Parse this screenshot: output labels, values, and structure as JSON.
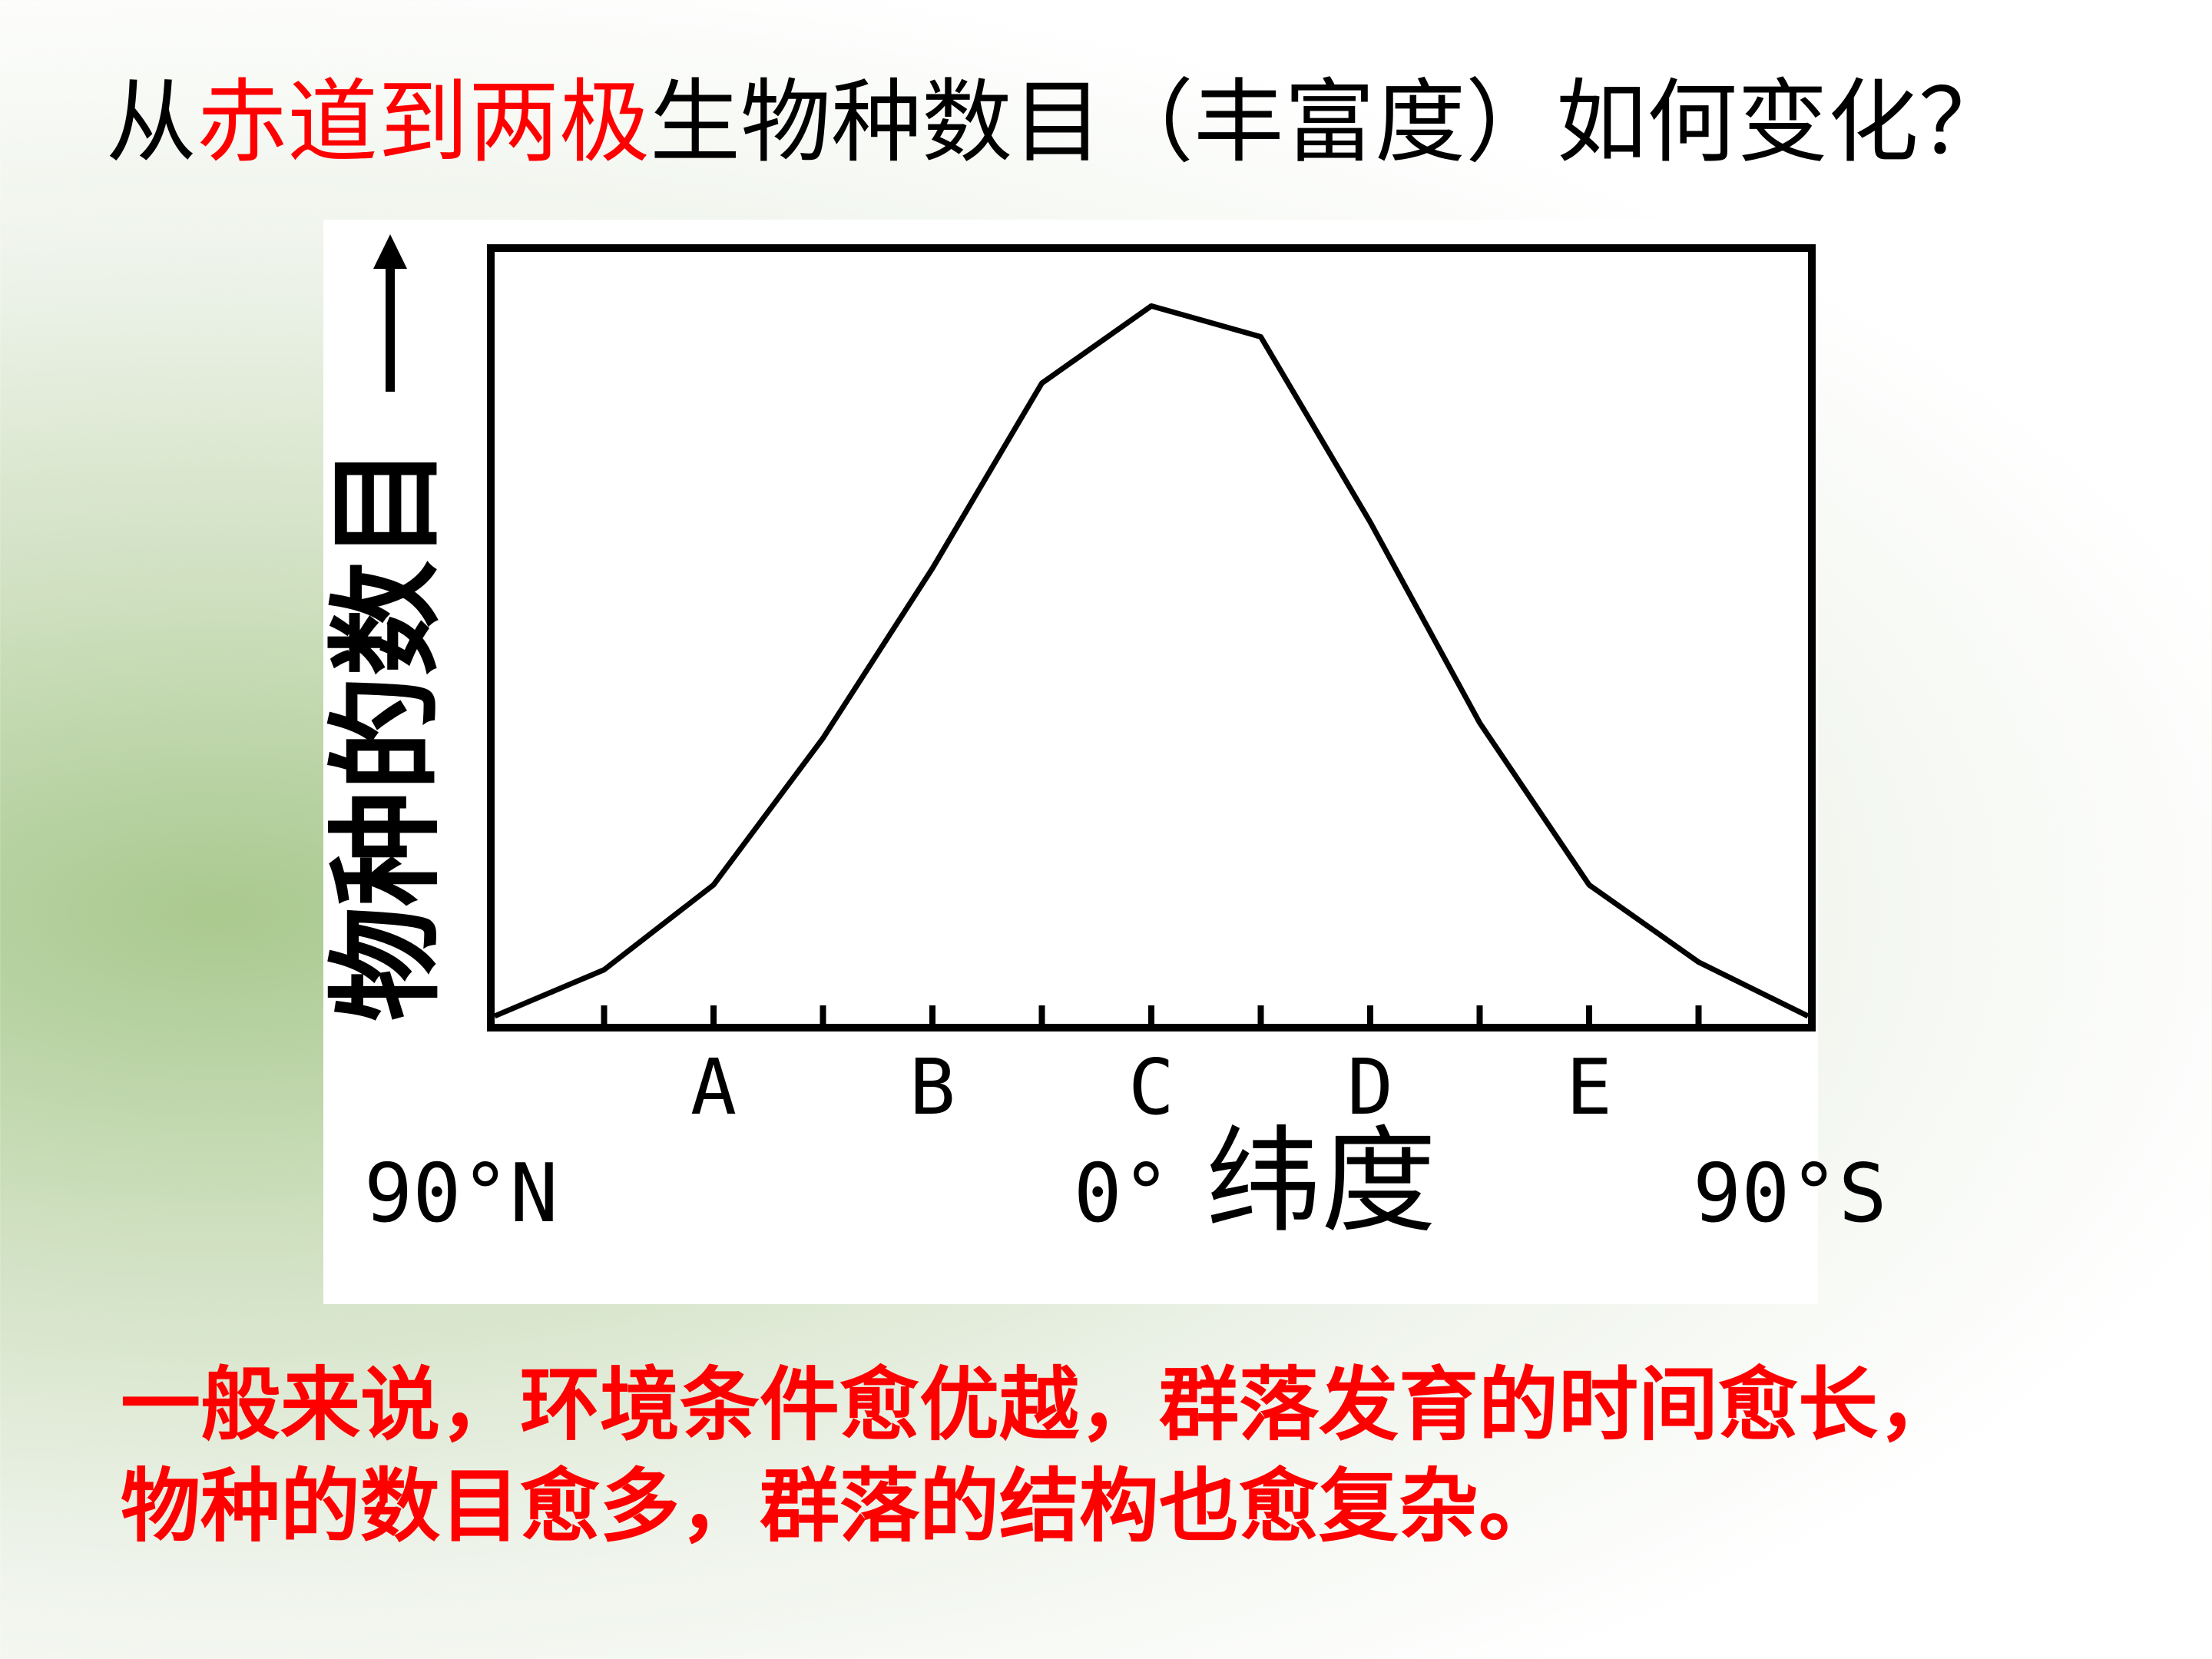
{
  "chart_data": {
    "type": "line",
    "title_parts": [
      {
        "text": "从",
        "color": "#000000"
      },
      {
        "text": "赤道到两极",
        "color": "#ff0000"
      },
      {
        "text": "生物种数目（丰富度）如何变化？",
        "color": "#000000"
      }
    ],
    "y_label": "物种的数目",
    "x_label": "纬度",
    "x": [
      90,
      75,
      60,
      45,
      30,
      15,
      0,
      -15,
      -30,
      -45,
      -60,
      -75,
      -90
    ],
    "series": [
      {
        "color": "#000000",
        "values": [
          1,
          7,
          18,
          37,
          59,
          83,
          93,
          89,
          65,
          39,
          18,
          8,
          1
        ]
      }
    ],
    "xlim": [
      90,
      -90
    ],
    "ylim": [
      0,
      100
    ],
    "xticks": [
      {
        "value": 60,
        "label": "A"
      },
      {
        "value": 30,
        "label": "B"
      },
      {
        "value": 0,
        "label": "C"
      },
      {
        "value": -30,
        "label": "D"
      },
      {
        "value": -60,
        "label": "E"
      }
    ],
    "minor_xticks": [
      75,
      45,
      15,
      -15,
      -45,
      -75
    ],
    "latitude_labels": [
      {
        "value": 90,
        "label": "90°N"
      },
      {
        "value": 0,
        "label": "0°"
      },
      {
        "value": -90,
        "label": "90°S"
      }
    ],
    "notes": [
      "一般来说，环境条件愈优越，群落发育的时间愈长，",
      "物种的数目愈多，群落的结构也愈复杂。"
    ],
    "notes_color": "#ff0000"
  }
}
